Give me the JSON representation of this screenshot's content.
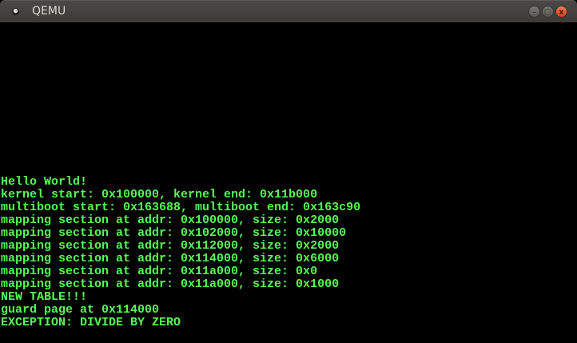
{
  "window": {
    "title": "QEMU",
    "buttons": {
      "minimize": "–",
      "maximize": "□",
      "close": "x"
    }
  },
  "console": {
    "text_color": "#55fc55",
    "start_row": 12,
    "lines": [
      "Hello World!",
      "kernel start: 0x100000, kernel end: 0x11b000",
      "multiboot start: 0x163688, multiboot end: 0x163c90",
      "mapping section at addr: 0x100000, size: 0x2000",
      "mapping section at addr: 0x102000, size: 0x10000",
      "mapping section at addr: 0x112000, size: 0x2000",
      "mapping section at addr: 0x114000, size: 0x6000",
      "mapping section at addr: 0x11a000, size: 0x0",
      "mapping section at addr: 0x11a000, size: 0x1000",
      "NEW TABLE!!!",
      "guard page at 0x114000",
      "EXCEPTION: DIVIDE BY ZERO"
    ]
  }
}
